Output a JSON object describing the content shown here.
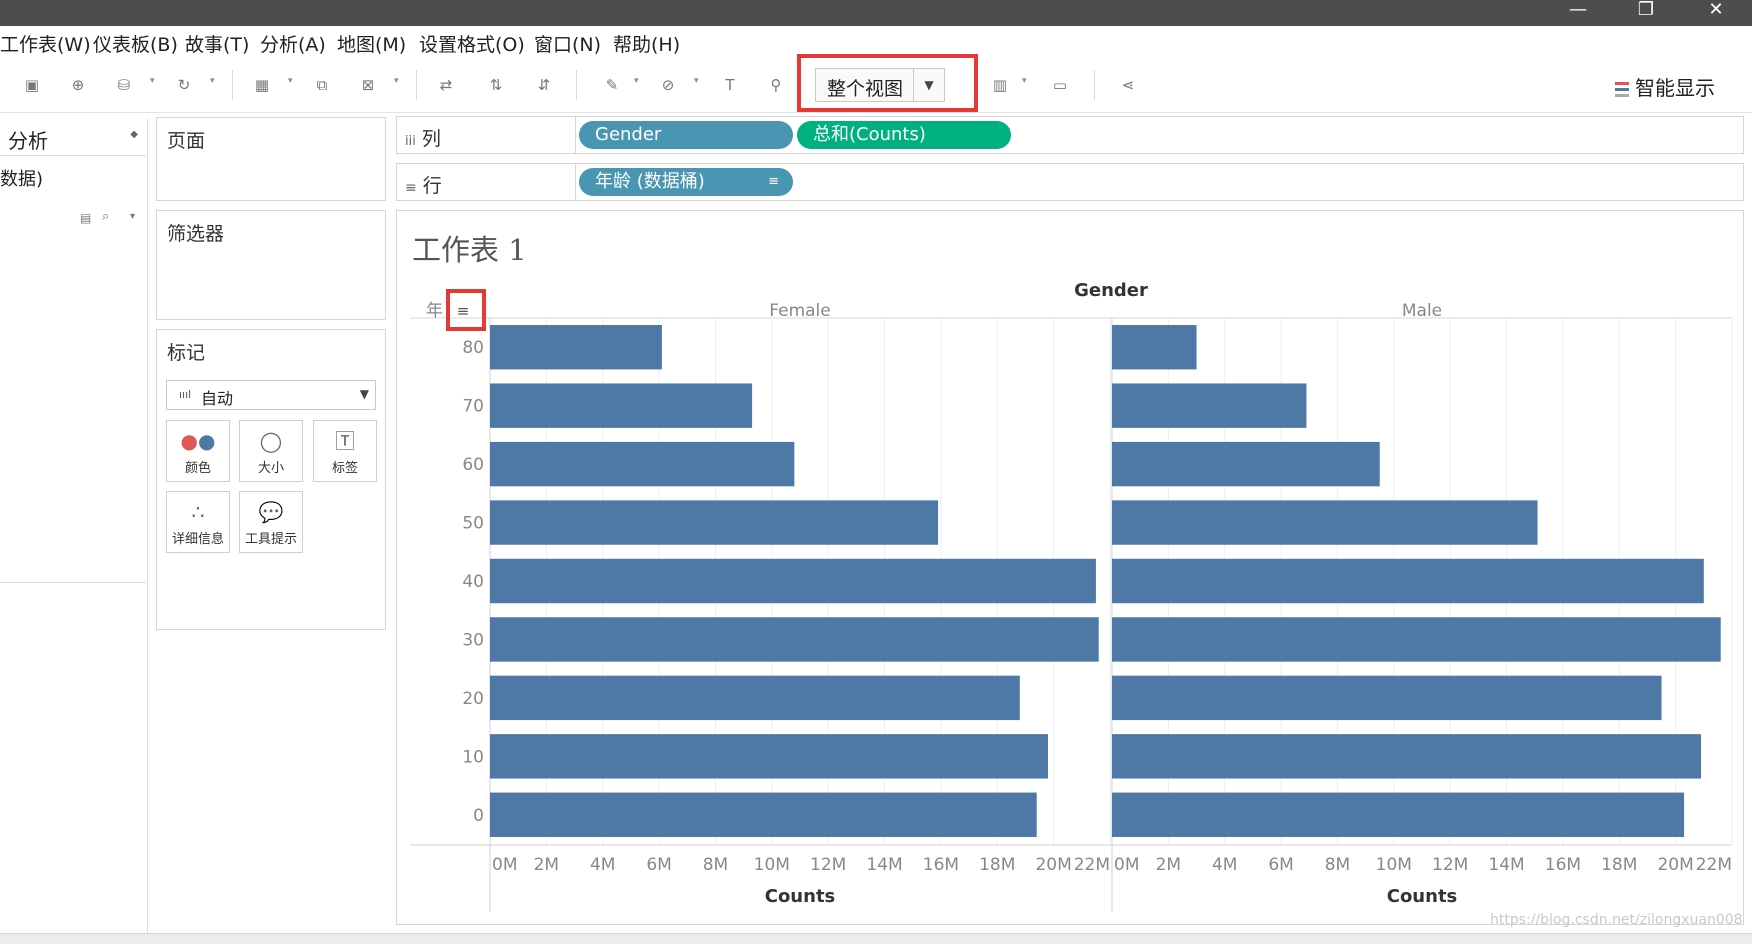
{
  "menu": {
    "items": [
      "工作表(W)",
      "仪表板(B)",
      "故事(T)",
      "分析(A)",
      "地图(M)",
      "设置格式(O)",
      "窗口(N)",
      "帮助(H)"
    ]
  },
  "toolbar": {
    "view_select": "整个视图",
    "smart_show": "智能显示"
  },
  "left_pane": {
    "tab": "分析",
    "data_source": "数据)"
  },
  "pages_panel": {
    "title": "页面"
  },
  "filters_panel": {
    "title": "筛选器"
  },
  "marks_panel": {
    "title": "标记",
    "mark_type": "自动",
    "cards": [
      "颜色",
      "大小",
      "标签",
      "详细信息",
      "工具提示"
    ]
  },
  "shelves": {
    "columns": {
      "label": "列",
      "pills": [
        "Gender",
        "总和(Counts)"
      ]
    },
    "rows": {
      "label": "行",
      "pills": [
        "年龄 (数据桶)"
      ]
    }
  },
  "sheet": {
    "title": "工作表 1"
  },
  "watermark": "https://blog.csdn.net/zilongxuan008",
  "colors": {
    "bar": "#4e79a7",
    "dimension_pill": "#4996b2",
    "measure_pill": "#00b180",
    "highlight": "#e53935"
  },
  "chart_data": {
    "type": "bar",
    "orientation": "horizontal",
    "title": "",
    "column_header": "Gender",
    "row_header": "年",
    "categories": [
      "80",
      "70",
      "60",
      "50",
      "40",
      "30",
      "20",
      "10",
      "0"
    ],
    "series": [
      {
        "name": "Female",
        "values": [
          6.1,
          9.3,
          10.8,
          15.9,
          21.5,
          21.6,
          18.8,
          19.8,
          19.4
        ]
      },
      {
        "name": "Male",
        "values": [
          3.0,
          6.9,
          9.5,
          15.1,
          21.0,
          21.6,
          19.5,
          20.9,
          20.3
        ]
      }
    ],
    "value_unit": "M",
    "xlabel": "Counts",
    "xlim": [
      0,
      22
    ],
    "x_ticks": [
      "0M",
      "2M",
      "4M",
      "6M",
      "8M",
      "10M",
      "12M",
      "14M",
      "16M",
      "18M",
      "20M",
      "22M"
    ],
    "grid": "vertical"
  }
}
